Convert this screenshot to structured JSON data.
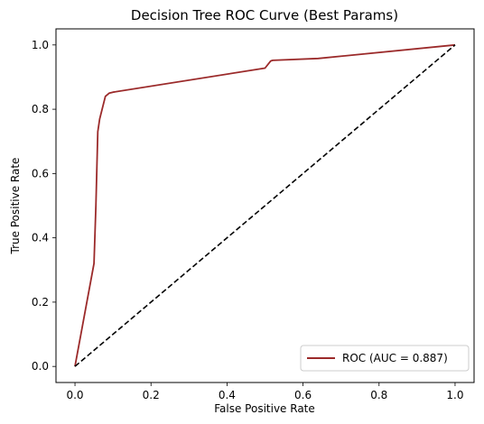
{
  "chart_data": {
    "type": "line",
    "title": "Decision Tree ROC Curve (Best Params)",
    "xlabel": "False Positive Rate",
    "ylabel": "True Positive Rate",
    "xlim": [
      -0.05,
      1.05
    ],
    "ylim": [
      -0.05,
      1.05
    ],
    "xticks": [
      0.0,
      0.2,
      0.4,
      0.6,
      0.8,
      1.0
    ],
    "xtick_labels": [
      "0.0",
      "0.2",
      "0.4",
      "0.6",
      "0.8",
      "1.0"
    ],
    "yticks": [
      0.0,
      0.2,
      0.4,
      0.6,
      0.8,
      1.0
    ],
    "ytick_labels": [
      "0.0",
      "0.2",
      "0.4",
      "0.6",
      "0.8",
      "1.0"
    ],
    "grid": false,
    "legend_position": "lower right",
    "series": [
      {
        "name": "ROC (AUC = 0.887)",
        "color": "#9b2a2a",
        "style": "solid",
        "x": [
          0.0,
          0.05,
          0.055,
          0.06,
          0.065,
          0.08,
          0.09,
          0.1,
          0.5,
          0.515,
          0.52,
          0.64,
          1.0
        ],
        "y": [
          0.0,
          0.32,
          0.5,
          0.73,
          0.77,
          0.84,
          0.85,
          0.853,
          0.928,
          0.95,
          0.952,
          0.958,
          1.0
        ]
      },
      {
        "color": "#000000",
        "style": "dashed",
        "x": [
          0.0,
          1.0
        ],
        "y": [
          0.0,
          1.0
        ]
      }
    ]
  }
}
